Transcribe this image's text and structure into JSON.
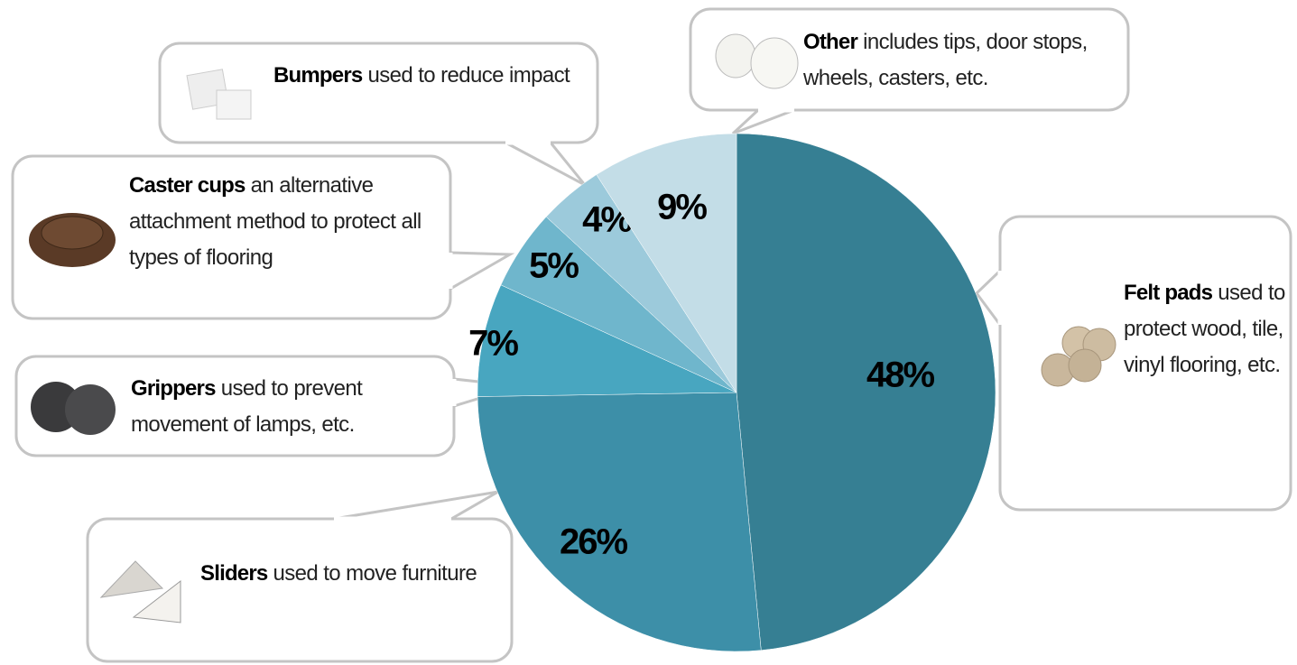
{
  "chart_data": {
    "type": "pie",
    "categories": [
      "Felt pads",
      "Sliders",
      "Grippers",
      "Caster cups",
      "Bumpers",
      "Other"
    ],
    "descriptions": [
      "used to protect wood, tile, vinyl flooring, etc.",
      "used to move furniture",
      "used to prevent movement of lamps, etc.",
      "an alternative attachment method to protect all types of flooring",
      "used to reduce impact",
      "includes tips, door stops, wheels, casters, etc."
    ],
    "values": [
      48,
      26,
      7,
      5,
      4,
      9
    ],
    "value_labels": [
      "48%",
      "26%",
      "7%",
      "5%",
      "4%",
      "9%"
    ],
    "colors": [
      "#367f93",
      "#3d8fa8",
      "#48a6c0",
      "#6fb6cc",
      "#9ccadb",
      "#c3dde7"
    ]
  }
}
